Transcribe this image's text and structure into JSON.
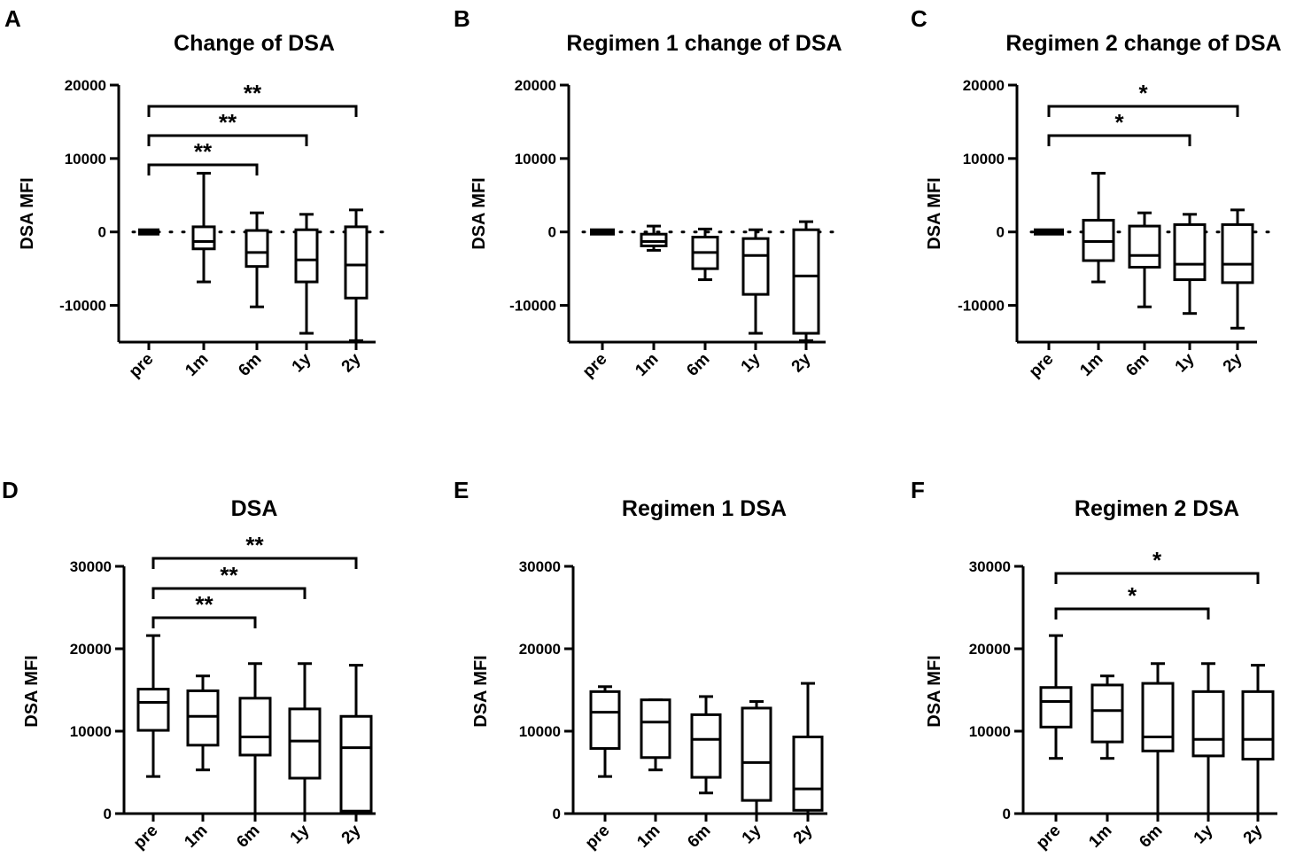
{
  "chart_data": [
    {
      "panel": "A",
      "type": "box",
      "title": "Change of DSA",
      "ylabel": "DSA MFI",
      "xlabel": "",
      "ylim": [
        -15000,
        20000
      ],
      "yticks": [
        20000,
        10000,
        0,
        -10000
      ],
      "categories": [
        "pre",
        "1m",
        "6m",
        "1y",
        "2y"
      ],
      "boxes": [
        {
          "min": 0,
          "q1": 0,
          "median": 0,
          "q3": 0,
          "max": 0
        },
        {
          "min": -6800,
          "q1": -2300,
          "median": -1300,
          "q3": 700,
          "max": 8000
        },
        {
          "min": -10200,
          "q1": -4700,
          "median": -2800,
          "q3": 200,
          "max": 2600
        },
        {
          "min": -13800,
          "q1": -6800,
          "median": -3800,
          "q3": 300,
          "max": 2400
        },
        {
          "min": -14800,
          "q1": -9000,
          "median": -4500,
          "q3": 700,
          "max": 3000
        }
      ],
      "reference_line": 0,
      "significance": [
        {
          "from": "pre",
          "to": "6m",
          "label": "**"
        },
        {
          "from": "pre",
          "to": "1y",
          "label": "**"
        },
        {
          "from": "pre",
          "to": "2y",
          "label": "**"
        }
      ]
    },
    {
      "panel": "B",
      "type": "box",
      "title": "Regimen 1 change of DSA",
      "ylabel": "DSA MFI",
      "xlabel": "",
      "ylim": [
        -15000,
        20000
      ],
      "yticks": [
        20000,
        10000,
        0,
        -10000
      ],
      "categories": [
        "pre",
        "1m",
        "6m",
        "1y",
        "2y"
      ],
      "boxes": [
        {
          "min": 0,
          "q1": 0,
          "median": 0,
          "q3": 0,
          "max": 0
        },
        {
          "min": -2500,
          "q1": -1900,
          "median": -1300,
          "q3": -300,
          "max": 800
        },
        {
          "min": -6500,
          "q1": -5000,
          "median": -2800,
          "q3": -700,
          "max": 400
        },
        {
          "min": -13800,
          "q1": -8500,
          "median": -3200,
          "q3": -900,
          "max": 300
        },
        {
          "min": -14800,
          "q1": -13800,
          "median": -6000,
          "q3": 300,
          "max": 1400
        }
      ],
      "reference_line": 0,
      "significance": []
    },
    {
      "panel": "C",
      "type": "box",
      "title": "Regimen 2 change of DSA",
      "ylabel": "DSA MFI",
      "xlabel": "",
      "ylim": [
        -15000,
        20000
      ],
      "yticks": [
        20000,
        10000,
        0,
        -10000
      ],
      "categories": [
        "pre",
        "1m",
        "6m",
        "1y",
        "2y"
      ],
      "boxes": [
        {
          "min": 0,
          "q1": 0,
          "median": 0,
          "q3": 0,
          "max": 0
        },
        {
          "min": -6800,
          "q1": -3900,
          "median": -1300,
          "q3": 1600,
          "max": 8000
        },
        {
          "min": -10200,
          "q1": -4800,
          "median": -3200,
          "q3": 800,
          "max": 2600
        },
        {
          "min": -11100,
          "q1": -6500,
          "median": -4400,
          "q3": 1000,
          "max": 2400
        },
        {
          "min": -13100,
          "q1": -6900,
          "median": -4400,
          "q3": 1000,
          "max": 3000
        }
      ],
      "reference_line": 0,
      "significance": [
        {
          "from": "pre",
          "to": "1y",
          "label": "*"
        },
        {
          "from": "pre",
          "to": "2y",
          "label": "*"
        }
      ]
    },
    {
      "panel": "D",
      "type": "box",
      "title": "DSA",
      "ylabel": "DSA MFI",
      "xlabel": "",
      "ylim": [
        0,
        30000
      ],
      "yticks": [
        30000,
        20000,
        10000,
        0
      ],
      "categories": [
        "pre",
        "1m",
        "6m",
        "1y",
        "2y"
      ],
      "boxes": [
        {
          "min": 4500,
          "q1": 10100,
          "median": 13500,
          "q3": 15100,
          "max": 21600
        },
        {
          "min": 5300,
          "q1": 8300,
          "median": 11800,
          "q3": 14900,
          "max": 16700
        },
        {
          "min": 0,
          "q1": 7100,
          "median": 9300,
          "q3": 14000,
          "max": 18200
        },
        {
          "min": 0,
          "q1": 4300,
          "median": 8800,
          "q3": 12700,
          "max": 18200
        },
        {
          "min": 0,
          "q1": 300,
          "median": 8000,
          "q3": 11800,
          "max": 18000
        }
      ],
      "significance": [
        {
          "from": "pre",
          "to": "6m",
          "label": "**"
        },
        {
          "from": "pre",
          "to": "1y",
          "label": "**"
        },
        {
          "from": "pre",
          "to": "2y",
          "label": "**"
        }
      ]
    },
    {
      "panel": "E",
      "type": "box",
      "title": "Regimen 1 DSA",
      "ylabel": "DSA MFI",
      "xlabel": "",
      "ylim": [
        0,
        30000
      ],
      "yticks": [
        30000,
        20000,
        10000,
        0
      ],
      "categories": [
        "pre",
        "1m",
        "6m",
        "1y",
        "2y"
      ],
      "boxes": [
        {
          "min": 4500,
          "q1": 7900,
          "median": 12300,
          "q3": 14800,
          "max": 15400
        },
        {
          "min": 5300,
          "q1": 6800,
          "median": 11100,
          "q3": 13800,
          "max": 13800
        },
        {
          "min": 2500,
          "q1": 4400,
          "median": 9000,
          "q3": 12000,
          "max": 14200
        },
        {
          "min": 0,
          "q1": 1600,
          "median": 6200,
          "q3": 12800,
          "max": 13600
        },
        {
          "min": 0,
          "q1": 400,
          "median": 3000,
          "q3": 9300,
          "max": 15800
        }
      ],
      "significance": []
    },
    {
      "panel": "F",
      "type": "box",
      "title": "Regimen 2 DSA",
      "ylabel": "DSA MFI",
      "xlabel": "",
      "ylim": [
        0,
        30000
      ],
      "yticks": [
        30000,
        20000,
        10000,
        0
      ],
      "categories": [
        "pre",
        "1m",
        "6m",
        "1y",
        "2y"
      ],
      "boxes": [
        {
          "min": 6700,
          "q1": 10500,
          "median": 13600,
          "q3": 15300,
          "max": 21600
        },
        {
          "min": 6700,
          "q1": 8700,
          "median": 12500,
          "q3": 15600,
          "max": 16700
        },
        {
          "min": 0,
          "q1": 7600,
          "median": 9300,
          "q3": 15800,
          "max": 18200
        },
        {
          "min": 0,
          "q1": 7000,
          "median": 9000,
          "q3": 14800,
          "max": 18200
        },
        {
          "min": 0,
          "q1": 6600,
          "median": 9000,
          "q3": 14800,
          "max": 18000
        }
      ],
      "significance": [
        {
          "from": "pre",
          "to": "1y",
          "label": "*"
        },
        {
          "from": "pre",
          "to": "2y",
          "label": "*"
        }
      ]
    }
  ]
}
